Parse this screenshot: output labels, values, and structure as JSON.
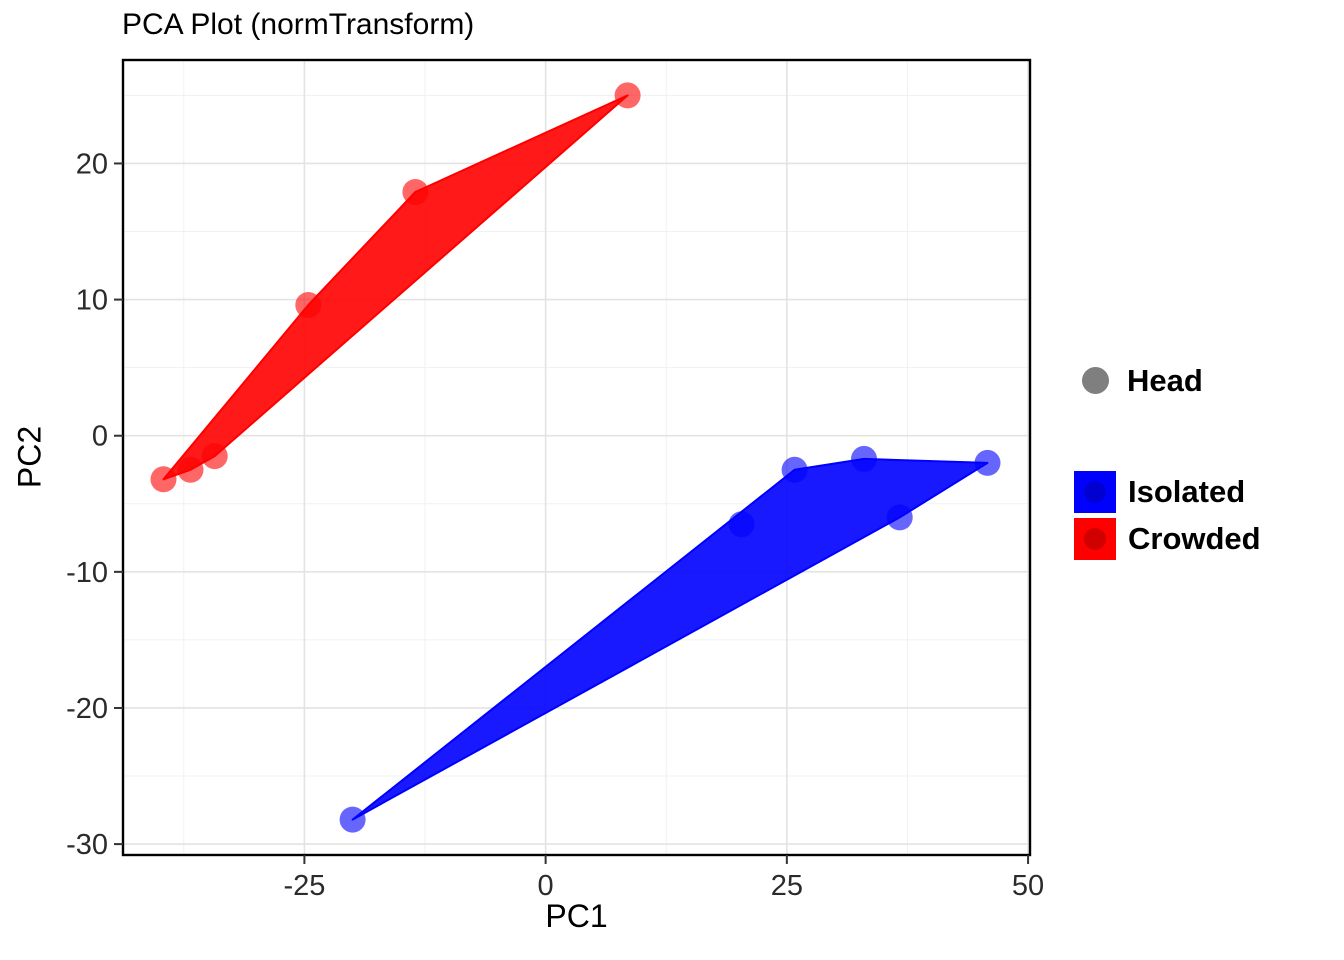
{
  "chart_data": {
    "type": "scatter",
    "title": "PCA Plot (normTransform)",
    "xlabel": "PC1",
    "ylabel": "PC2",
    "xlim": [
      -43.8,
      50.2
    ],
    "ylim": [
      -30.8,
      27.6
    ],
    "x_ticks": [
      -25,
      0,
      25,
      50
    ],
    "y_ticks": [
      -30,
      -20,
      -10,
      0,
      10,
      20
    ],
    "x_minor_ticks": [
      -37.5,
      -12.5,
      12.5,
      37.5
    ],
    "y_minor_ticks": [
      -25,
      -15,
      -5,
      5,
      15,
      25
    ],
    "grid": true,
    "legend_position": "right",
    "point_radius_px": 13,
    "point_alpha": 0.6,
    "fill_alpha": 0.9,
    "colors": {
      "grid_major": "#E3E3E3",
      "grid_minor": "#F1F1F1",
      "panel_border": "#000000",
      "axis_text": "#2B2B2B",
      "tick_mark": "#333333"
    },
    "legend": {
      "shape_entries": [
        {
          "label": "Head",
          "color": "#7F7F7F"
        }
      ],
      "fill_entries": [
        {
          "label": "Isolated",
          "color": "#0000FF"
        },
        {
          "label": "Crowded",
          "color": "#FF0000"
        }
      ]
    },
    "series": [
      {
        "name": "Crowded",
        "color": "#FF0000",
        "points": [
          [
            -39.6,
            -3.2
          ],
          [
            -36.8,
            -2.5
          ],
          [
            -34.3,
            -1.5
          ],
          [
            -24.6,
            9.6
          ],
          [
            -13.5,
            17.9
          ],
          [
            8.5,
            25.0
          ]
        ],
        "hull": [
          [
            -39.6,
            -3.2
          ],
          [
            -24.6,
            9.6
          ],
          [
            -13.5,
            17.9
          ],
          [
            8.5,
            25.0
          ],
          [
            -34.3,
            -1.5
          ],
          [
            -36.8,
            -2.5
          ]
        ]
      },
      {
        "name": "Isolated",
        "color": "#0000FF",
        "points": [
          [
            -20.0,
            -28.2
          ],
          [
            20.3,
            -6.5
          ],
          [
            25.8,
            -2.5
          ],
          [
            33.0,
            -1.7
          ],
          [
            36.7,
            -6.0
          ],
          [
            45.8,
            -2.0
          ]
        ],
        "hull": [
          [
            -20.0,
            -28.2
          ],
          [
            25.8,
            -2.5
          ],
          [
            33.0,
            -1.7
          ],
          [
            45.8,
            -2.0
          ],
          [
            36.7,
            -6.0
          ]
        ]
      }
    ]
  }
}
